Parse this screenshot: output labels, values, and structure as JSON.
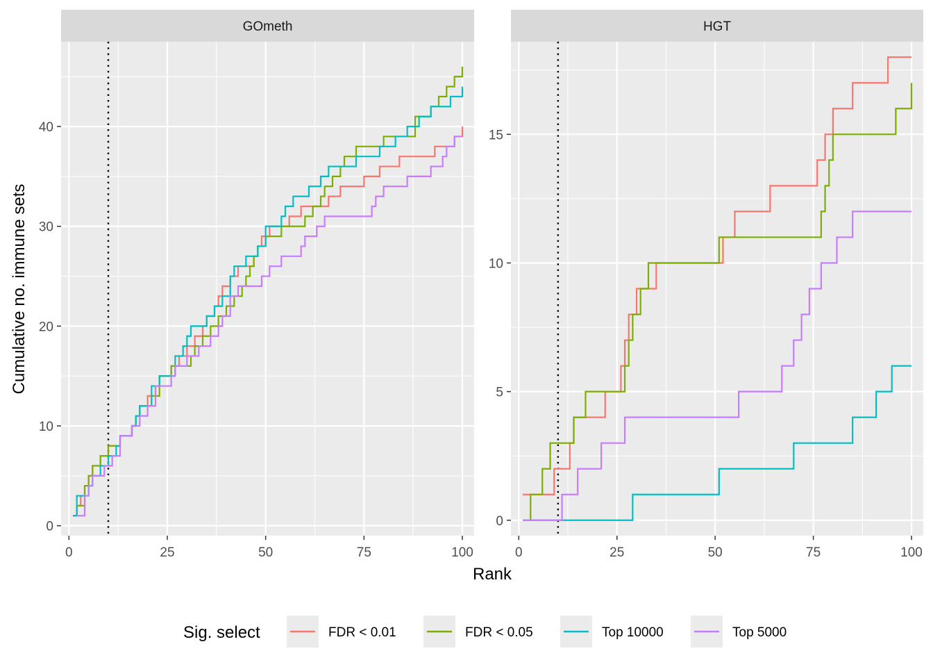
{
  "chart_data": {
    "type": "line",
    "xlabel": "Rank",
    "ylabel": "Cumulative no. immune sets",
    "legend": {
      "title": "Sig. select",
      "position": "bottom",
      "entries": [
        "FDR < 0.01",
        "FDR < 0.05",
        "Top 10000",
        "Top 5000"
      ]
    },
    "colors": {
      "FDR < 0.01": "#F8766D",
      "FDR < 0.05": "#7CAE00",
      "Top 10000": "#00BFC4",
      "Top 5000": "#C77CFF"
    },
    "reference_line": {
      "x": 10,
      "style": "dotted",
      "color": "#000000"
    },
    "grid": true,
    "facets": [
      {
        "strip": "GOmeth",
        "xlim": [
          -2,
          103
        ],
        "ylim": [
          -1,
          48.5
        ],
        "x_ticks": [
          0,
          25,
          50,
          75,
          100
        ],
        "y_ticks": [
          0,
          10,
          20,
          30,
          40
        ],
        "series": [
          {
            "name": "FDR < 0.01",
            "points": [
              [
                1,
                1
              ],
              [
                2,
                2
              ],
              [
                3,
                3
              ],
              [
                4,
                4
              ],
              [
                5,
                5
              ],
              [
                6,
                6
              ],
              [
                8,
                7
              ],
              [
                10,
                8
              ],
              [
                12,
                8
              ],
              [
                13,
                9
              ],
              [
                16,
                10
              ],
              [
                17,
                11
              ],
              [
                18,
                12
              ],
              [
                20,
                13
              ],
              [
                22,
                14
              ],
              [
                23,
                15
              ],
              [
                26,
                16
              ],
              [
                28,
                17
              ],
              [
                30,
                18
              ],
              [
                32,
                19
              ],
              [
                34,
                20
              ],
              [
                35,
                21
              ],
              [
                37,
                22
              ],
              [
                38,
                23
              ],
              [
                39,
                24
              ],
              [
                41,
                25
              ],
              [
                43,
                26
              ],
              [
                47,
                27
              ],
              [
                48,
                28
              ],
              [
                49,
                29
              ],
              [
                51,
                30
              ],
              [
                56,
                31
              ],
              [
                59,
                32
              ],
              [
                66,
                33
              ],
              [
                69,
                34
              ],
              [
                75,
                35
              ],
              [
                79,
                36
              ],
              [
                84,
                37
              ],
              [
                93,
                38
              ],
              [
                98,
                39
              ],
              [
                100,
                40
              ]
            ]
          },
          {
            "name": "FDR < 0.05",
            "points": [
              [
                1,
                1
              ],
              [
                2,
                2
              ],
              [
                4,
                4
              ],
              [
                5,
                5
              ],
              [
                6,
                6
              ],
              [
                8,
                7
              ],
              [
                10,
                8
              ],
              [
                13,
                9
              ],
              [
                16,
                10
              ],
              [
                17,
                11
              ],
              [
                18,
                12
              ],
              [
                21,
                13
              ],
              [
                23,
                15
              ],
              [
                26,
                16
              ],
              [
                31,
                17
              ],
              [
                32,
                18
              ],
              [
                34,
                19
              ],
              [
                36,
                20
              ],
              [
                38,
                21
              ],
              [
                40,
                22
              ],
              [
                42,
                23
              ],
              [
                44,
                24
              ],
              [
                45,
                25
              ],
              [
                46,
                26
              ],
              [
                47,
                27
              ],
              [
                48,
                28
              ],
              [
                50,
                29
              ],
              [
                54,
                30
              ],
              [
                60,
                31
              ],
              [
                62,
                32
              ],
              [
                64,
                33
              ],
              [
                65,
                34
              ],
              [
                67,
                35
              ],
              [
                69,
                36
              ],
              [
                70,
                37
              ],
              [
                73,
                38
              ],
              [
                80,
                39
              ],
              [
                88,
                41
              ],
              [
                92,
                42
              ],
              [
                94,
                43
              ],
              [
                96,
                44
              ],
              [
                98,
                45
              ],
              [
                100,
                46
              ]
            ]
          },
          {
            "name": "Top 10000",
            "points": [
              [
                1,
                1
              ],
              [
                2,
                3
              ],
              [
                5,
                4
              ],
              [
                6,
                5
              ],
              [
                8,
                6
              ],
              [
                10,
                7
              ],
              [
                12,
                8
              ],
              [
                13,
                9
              ],
              [
                16,
                10
              ],
              [
                17,
                11
              ],
              [
                18,
                12
              ],
              [
                21,
                14
              ],
              [
                23,
                15
              ],
              [
                27,
                17
              ],
              [
                29,
                18
              ],
              [
                30,
                19
              ],
              [
                31,
                20
              ],
              [
                35,
                21
              ],
              [
                37,
                22
              ],
              [
                39,
                23
              ],
              [
                41,
                25
              ],
              [
                42,
                26
              ],
              [
                45,
                27
              ],
              [
                48,
                28
              ],
              [
                50,
                30
              ],
              [
                54,
                31
              ],
              [
                55,
                32
              ],
              [
                57,
                33
              ],
              [
                61,
                34
              ],
              [
                64,
                35
              ],
              [
                66,
                36
              ],
              [
                73,
                37
              ],
              [
                79,
                38
              ],
              [
                83,
                39
              ],
              [
                86,
                40
              ],
              [
                89,
                41
              ],
              [
                92,
                42
              ],
              [
                97,
                43
              ],
              [
                100,
                44
              ]
            ]
          },
          {
            "name": "Top 5000",
            "points": [
              [
                2,
                1
              ],
              [
                4,
                3
              ],
              [
                5,
                4
              ],
              [
                6,
                5
              ],
              [
                7,
                5
              ],
              [
                9,
                6
              ],
              [
                11,
                7
              ],
              [
                13,
                9
              ],
              [
                16,
                10
              ],
              [
                18,
                11
              ],
              [
                20,
                12
              ],
              [
                22,
                14
              ],
              [
                26,
                15
              ],
              [
                27,
                16
              ],
              [
                30,
                17
              ],
              [
                33,
                18
              ],
              [
                36,
                19
              ],
              [
                38,
                20
              ],
              [
                39,
                21
              ],
              [
                41,
                23
              ],
              [
                43,
                24
              ],
              [
                49,
                25
              ],
              [
                51,
                26
              ],
              [
                54,
                27
              ],
              [
                59,
                28
              ],
              [
                60,
                29
              ],
              [
                63,
                30
              ],
              [
                65,
                31
              ],
              [
                77,
                32
              ],
              [
                78,
                33
              ],
              [
                80,
                34
              ],
              [
                86,
                35
              ],
              [
                92,
                36
              ],
              [
                95,
                37
              ],
              [
                96,
                38
              ],
              [
                98,
                39
              ],
              [
                100,
                39
              ]
            ]
          }
        ]
      },
      {
        "strip": "HGT",
        "xlim": [
          -2,
          103
        ],
        "ylim": [
          -0.6,
          18.6
        ],
        "x_ticks": [
          0,
          25,
          50,
          75,
          100
        ],
        "y_ticks": [
          0,
          5,
          10,
          15
        ],
        "series": [
          {
            "name": "FDR < 0.01",
            "points": [
              [
                1,
                1
              ],
              [
                9,
                2
              ],
              [
                13,
                3
              ],
              [
                14,
                4
              ],
              [
                22,
                5
              ],
              [
                26,
                6
              ],
              [
                27,
                7
              ],
              [
                28,
                8
              ],
              [
                30,
                9
              ],
              [
                35,
                10
              ],
              [
                52,
                11
              ],
              [
                55,
                12
              ],
              [
                64,
                13
              ],
              [
                76,
                14
              ],
              [
                78,
                15
              ],
              [
                80,
                16
              ],
              [
                85,
                17
              ],
              [
                94,
                18
              ],
              [
                100,
                18
              ]
            ]
          },
          {
            "name": "FDR < 0.05",
            "points": [
              [
                1,
                0
              ],
              [
                3,
                1
              ],
              [
                6,
                2
              ],
              [
                8,
                3
              ],
              [
                13,
                3
              ],
              [
                14,
                4
              ],
              [
                16,
                4
              ],
              [
                17,
                5
              ],
              [
                27,
                6
              ],
              [
                28,
                7
              ],
              [
                29,
                8
              ],
              [
                31,
                9
              ],
              [
                33,
                10
              ],
              [
                47,
                10
              ],
              [
                51,
                11
              ],
              [
                77,
                12
              ],
              [
                78,
                13
              ],
              [
                79,
                14
              ],
              [
                80,
                15
              ],
              [
                96,
                16
              ],
              [
                100,
                17
              ]
            ]
          },
          {
            "name": "Top 10000",
            "points": [
              [
                1,
                0
              ],
              [
                29,
                1
              ],
              [
                51,
                2
              ],
              [
                70,
                3
              ],
              [
                85,
                4
              ],
              [
                91,
                5
              ],
              [
                95,
                6
              ],
              [
                100,
                6
              ]
            ]
          },
          {
            "name": "Top 5000",
            "points": [
              [
                1,
                0
              ],
              [
                10,
                0
              ],
              [
                11,
                1
              ],
              [
                15,
                2
              ],
              [
                21,
                3
              ],
              [
                27,
                4
              ],
              [
                56,
                5
              ],
              [
                67,
                6
              ],
              [
                70,
                7
              ],
              [
                72,
                8
              ],
              [
                74,
                9
              ],
              [
                77,
                10
              ],
              [
                81,
                11
              ],
              [
                85,
                12
              ],
              [
                100,
                12
              ]
            ]
          }
        ]
      }
    ]
  }
}
